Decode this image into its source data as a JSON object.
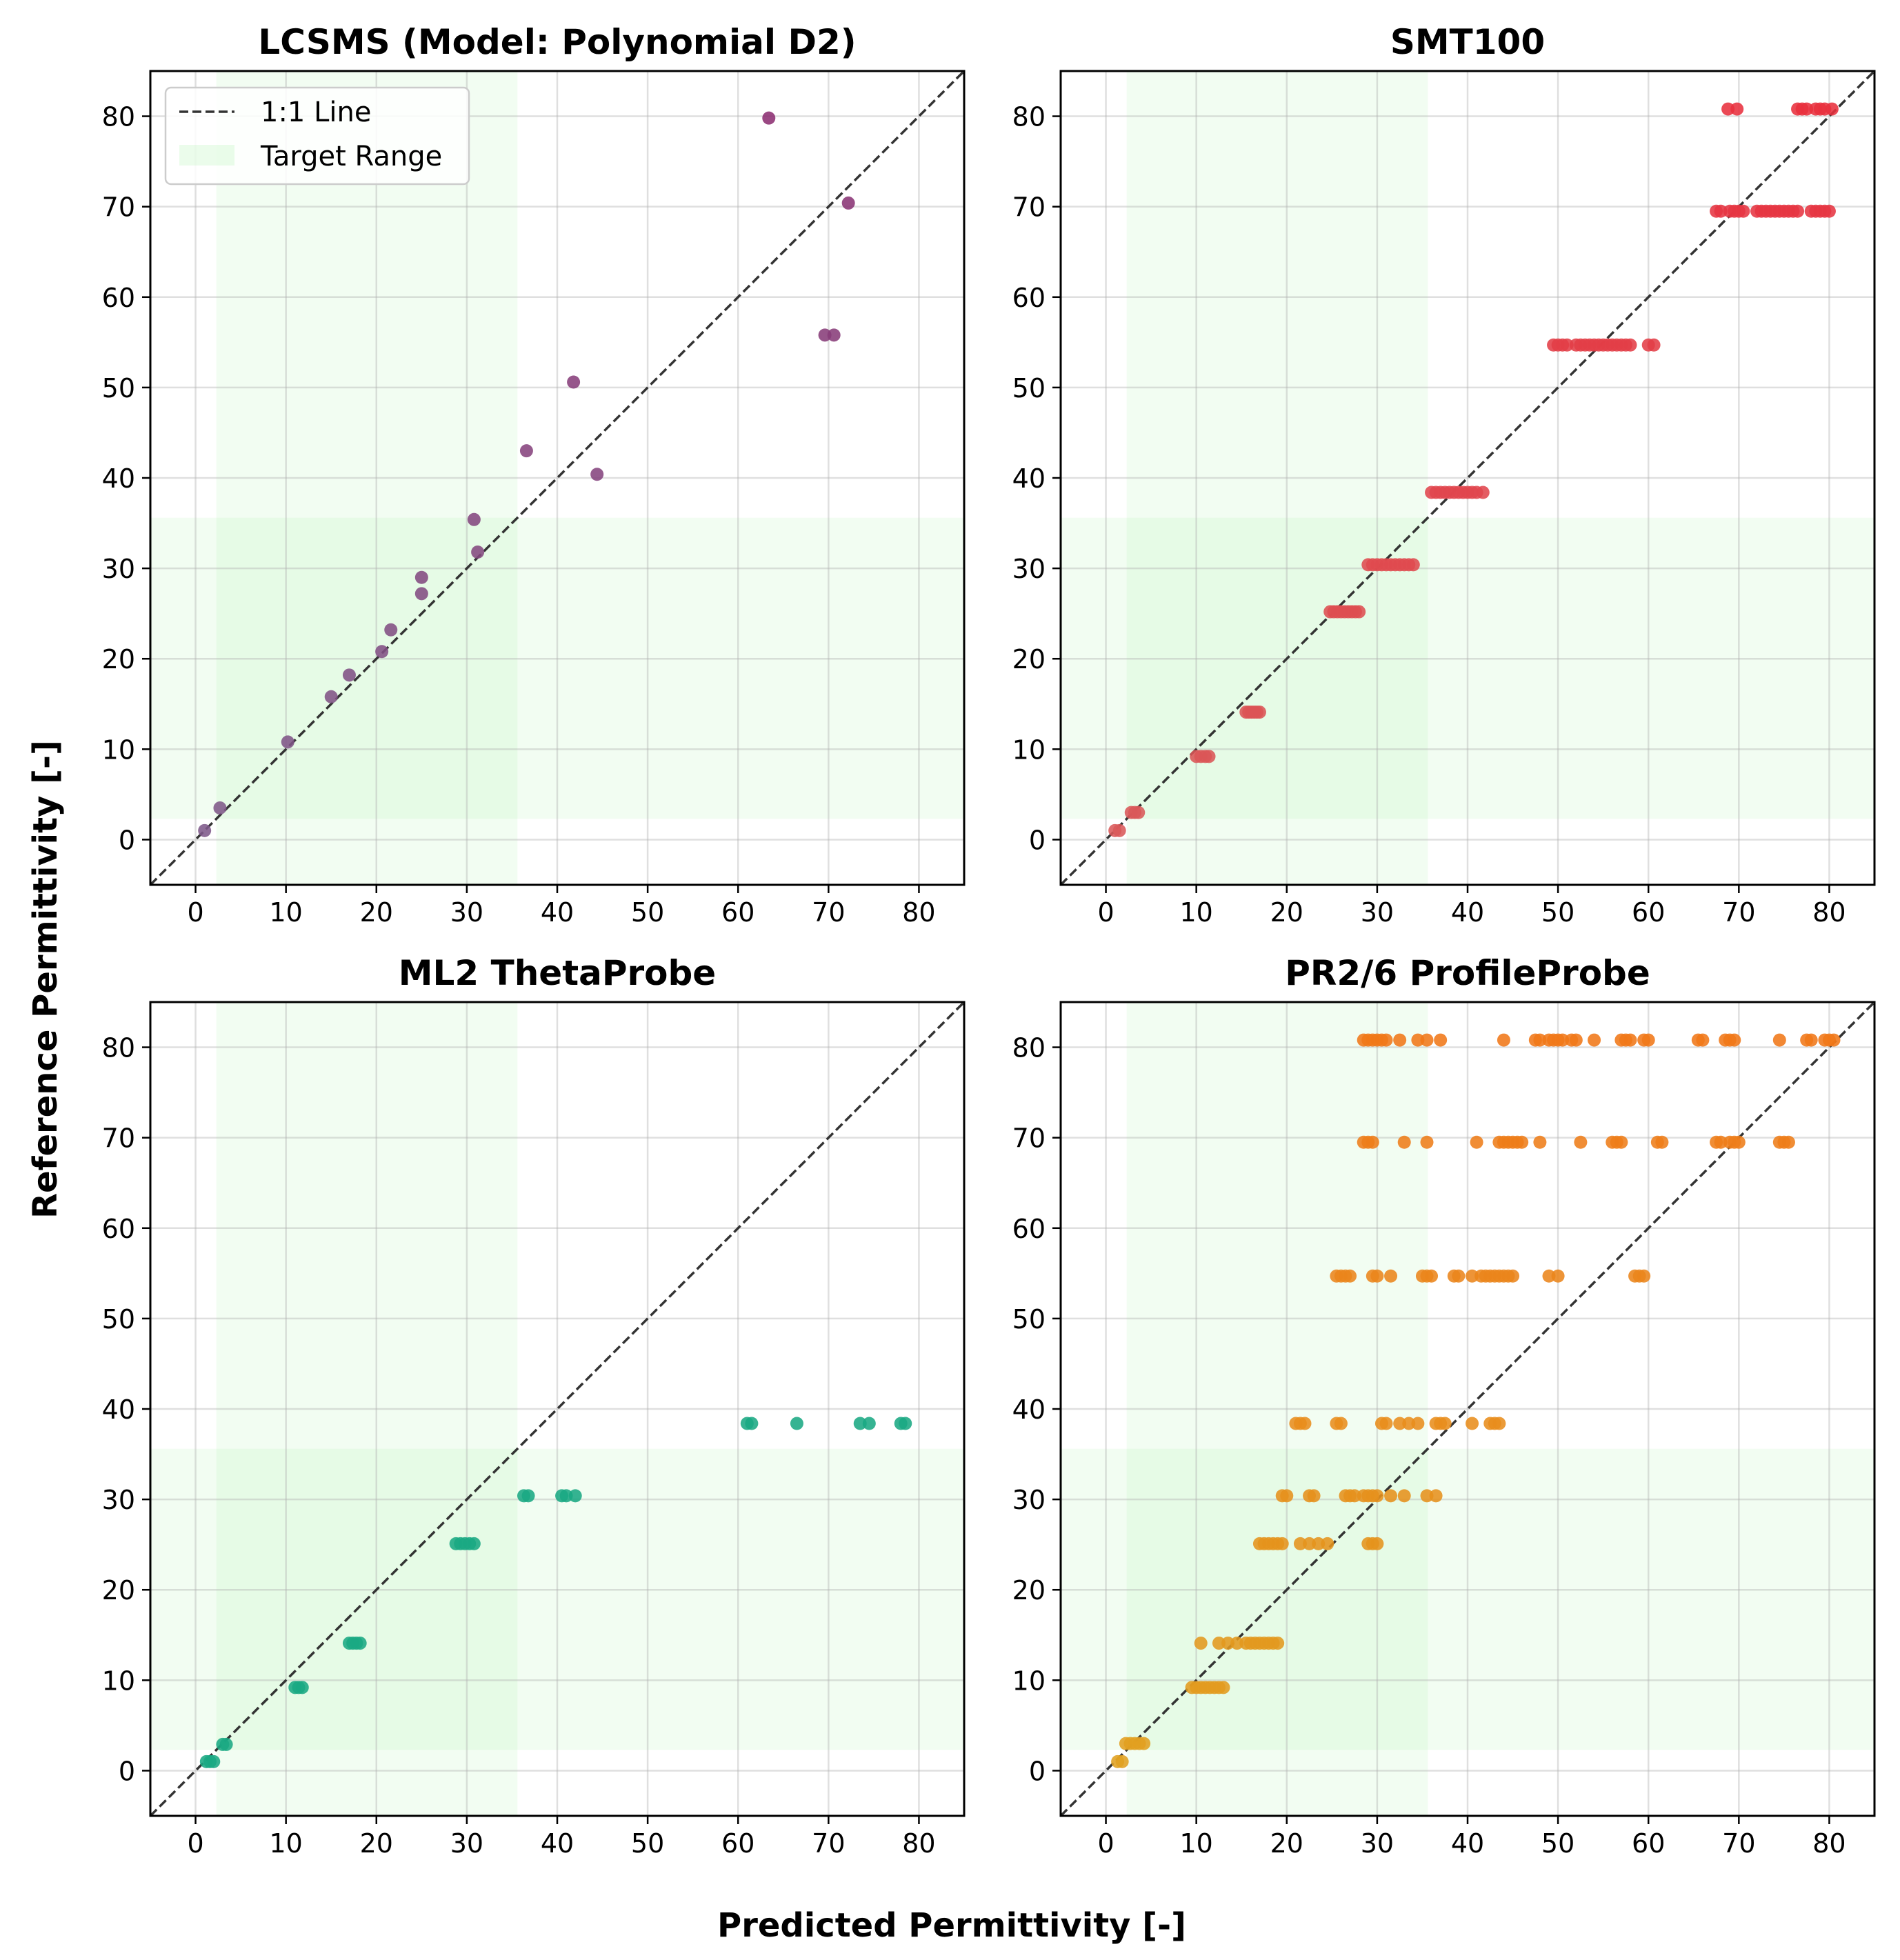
{
  "figure": {
    "xlabel": "Predicted Permittivity [-]",
    "ylabel": "Reference Permittivity [-]"
  },
  "legend": {
    "line_label": "1:1 Line",
    "range_label": "Target Range"
  },
  "chart_data": [
    {
      "type": "scatter",
      "title": "LCSMS (Model: Polynomial D2)",
      "xlabel": "Predicted Permittivity [-]",
      "ylabel": "Reference Permittivity [-]",
      "xlim": [
        -5,
        85
      ],
      "ylim": [
        -5,
        85
      ],
      "xticks": [
        0,
        10,
        20,
        30,
        40,
        50,
        60,
        70,
        80
      ],
      "yticks": [
        0,
        10,
        20,
        30,
        40,
        50,
        60,
        70,
        80
      ],
      "grid": true,
      "legend": "top-left",
      "target_range": [
        2.3,
        35.6
      ],
      "color_low": "#7e5a8a",
      "color_high": "#8c2f72",
      "points": [
        [
          1,
          1
        ],
        [
          2.7,
          3.5
        ],
        [
          10.2,
          10.8
        ],
        [
          15,
          15.8
        ],
        [
          17,
          18.2
        ],
        [
          20.6,
          20.8
        ],
        [
          21.6,
          23.2
        ],
        [
          25,
          27.2
        ],
        [
          25,
          29
        ],
        [
          30.8,
          35.4
        ],
        [
          31.2,
          31.8
        ],
        [
          36.6,
          43
        ],
        [
          41.8,
          50.6
        ],
        [
          44.4,
          40.4
        ],
        [
          63.4,
          79.8
        ],
        [
          69.6,
          55.8
        ],
        [
          70.6,
          55.8
        ],
        [
          72.2,
          70.4
        ]
      ]
    },
    {
      "type": "scatter",
      "title": "SMT100",
      "xlim": [
        -5,
        85
      ],
      "ylim": [
        -5,
        85
      ],
      "xticks": [
        0,
        10,
        20,
        30,
        40,
        50,
        60,
        70,
        80
      ],
      "yticks": [
        0,
        10,
        20,
        30,
        40,
        50,
        60,
        70,
        80
      ],
      "grid": true,
      "target_range": [
        2.3,
        35.6
      ],
      "color_low": "#d95a5a",
      "color_high": "#e8303e",
      "groups": [
        {
          "y": 1.0,
          "x": [
            1,
            1.5
          ]
        },
        {
          "y": 3.0,
          "x": [
            2.8,
            3.2,
            3.6
          ]
        },
        {
          "y": 9.2,
          "x": [
            10,
            10.5,
            11,
            11.4
          ]
        },
        {
          "y": 14.1,
          "x": [
            15.5,
            15.8,
            16.1,
            16.4,
            16.7,
            17
          ]
        },
        {
          "y": 25.2,
          "x": [
            24.8,
            25.2,
            25.6,
            26,
            26.4,
            26.8,
            27.2,
            27.6,
            28
          ]
        },
        {
          "y": 30.4,
          "x": [
            29,
            29.5,
            30,
            30.5,
            31,
            31.5,
            32,
            32.5,
            33,
            33.5,
            34
          ]
        },
        {
          "y": 38.4,
          "x": [
            36,
            36.5,
            37,
            37.5,
            38,
            38.5,
            39,
            39.5,
            40,
            40.5,
            41,
            41.7
          ]
        },
        {
          "y": 54.7,
          "x": [
            49.5,
            50,
            50.5,
            51,
            52,
            52.5,
            53,
            53.5,
            54,
            54.5,
            55,
            55.5,
            56,
            56.5,
            57,
            57.5,
            58,
            60,
            60.6
          ]
        },
        {
          "y": 69.5,
          "x": [
            67.5,
            68,
            69,
            69.5,
            70,
            70.5,
            72,
            72.5,
            73,
            73.5,
            74,
            74.5,
            75,
            75.5,
            76,
            76.5,
            78,
            78.5,
            79,
            79.5,
            80
          ]
        },
        {
          "y": 80.8,
          "x": [
            68.8,
            69.8,
            76.5,
            77,
            77.5,
            78.5,
            79,
            79.5,
            80.3
          ]
        }
      ]
    },
    {
      "type": "scatter",
      "title": "ML2 ThetaProbe",
      "xlim": [
        -5,
        85
      ],
      "ylim": [
        -5,
        85
      ],
      "xticks": [
        0,
        10,
        20,
        30,
        40,
        50,
        60,
        70,
        80
      ],
      "yticks": [
        0,
        10,
        20,
        30,
        40,
        50,
        60,
        70,
        80
      ],
      "grid": true,
      "target_range": [
        2.3,
        35.6
      ],
      "color_low": "#1aa883",
      "color_high": "#1aa883",
      "groups": [
        {
          "y": 1.0,
          "x": [
            1.2,
            1.6,
            2
          ]
        },
        {
          "y": 2.9,
          "x": [
            3,
            3.4
          ]
        },
        {
          "y": 9.2,
          "x": [
            11,
            11.4,
            11.8
          ]
        },
        {
          "y": 14.1,
          "x": [
            17,
            17.4,
            17.8,
            18.2
          ]
        },
        {
          "y": 25.1,
          "x": [
            28.8,
            29.3,
            29.8,
            30.3,
            30.8
          ]
        },
        {
          "y": 30.4,
          "x": [
            36.3,
            36.8,
            40.5,
            41,
            42
          ]
        },
        {
          "y": 38.4,
          "x": [
            61,
            61.5,
            66.5,
            73.5,
            74.5,
            78,
            78.5
          ]
        }
      ]
    },
    {
      "type": "scatter",
      "title": "PR2/6 ProfileProbe",
      "xlim": [
        -5,
        85
      ],
      "ylim": [
        -5,
        85
      ],
      "xticks": [
        0,
        10,
        20,
        30,
        40,
        50,
        60,
        70,
        80
      ],
      "yticks": [
        0,
        10,
        20,
        30,
        40,
        50,
        60,
        70,
        80
      ],
      "grid": true,
      "target_range": [
        2.3,
        35.6
      ],
      "color_low": "#e0a020",
      "color_high": "#f07818",
      "groups": [
        {
          "y": 1.0,
          "x": [
            1.3,
            1.8
          ]
        },
        {
          "y": 3.0,
          "x": [
            2.2,
            2.7,
            3.2,
            3.7,
            4.2
          ]
        },
        {
          "y": 9.2,
          "x": [
            9.5,
            10,
            10.5,
            11,
            11.5,
            12,
            12.5,
            13
          ]
        },
        {
          "y": 14.1,
          "x": [
            10.5,
            12.5,
            13.5,
            14.5,
            15.5,
            16,
            16.5,
            17,
            17.5,
            18,
            18.5,
            19
          ]
        },
        {
          "y": 25.1,
          "x": [
            17,
            17.5,
            18,
            18.5,
            19,
            19.5,
            21.5,
            22.5,
            23.5,
            24.5,
            29,
            29.5,
            30
          ]
        },
        {
          "y": 30.4,
          "x": [
            19.5,
            20,
            22.5,
            23,
            26.5,
            27,
            27.5,
            28.5,
            29,
            29.5,
            30,
            31.5,
            33,
            35.5,
            36.5
          ]
        },
        {
          "y": 38.4,
          "x": [
            21,
            21.5,
            22,
            25.5,
            26,
            30.5,
            31,
            32.5,
            33.5,
            34.5,
            36.5,
            37,
            37.5,
            40.5,
            42.5,
            43,
            43.5
          ]
        },
        {
          "y": 54.7,
          "x": [
            25.5,
            26,
            26.5,
            27,
            29.5,
            30,
            31.5,
            35,
            35.5,
            36,
            38.5,
            39,
            40.5,
            41.5,
            42,
            42.5,
            43,
            43.5,
            44,
            44.5,
            45,
            49,
            50,
            58.5,
            59,
            59.5
          ]
        },
        {
          "y": 69.5,
          "x": [
            28.5,
            29,
            29.5,
            33,
            35.5,
            41,
            43.5,
            44,
            44.5,
            45,
            45.5,
            46,
            48,
            52.5,
            56,
            56.5,
            57,
            61,
            61.5,
            67.5,
            68,
            69,
            69.5,
            70,
            74.5,
            75,
            75.5
          ]
        },
        {
          "y": 80.8,
          "x": [
            28.5,
            29,
            29.5,
            30,
            30.5,
            31,
            32.5,
            34.5,
            35.5,
            37,
            44,
            47.5,
            48,
            49,
            49.5,
            50,
            50.5,
            51.5,
            52,
            54,
            57,
            57.5,
            58,
            59.5,
            60,
            65.5,
            66,
            68.5,
            69,
            69.5,
            74.5,
            77.5,
            78,
            79.5,
            80,
            80.5
          ]
        }
      ]
    }
  ]
}
